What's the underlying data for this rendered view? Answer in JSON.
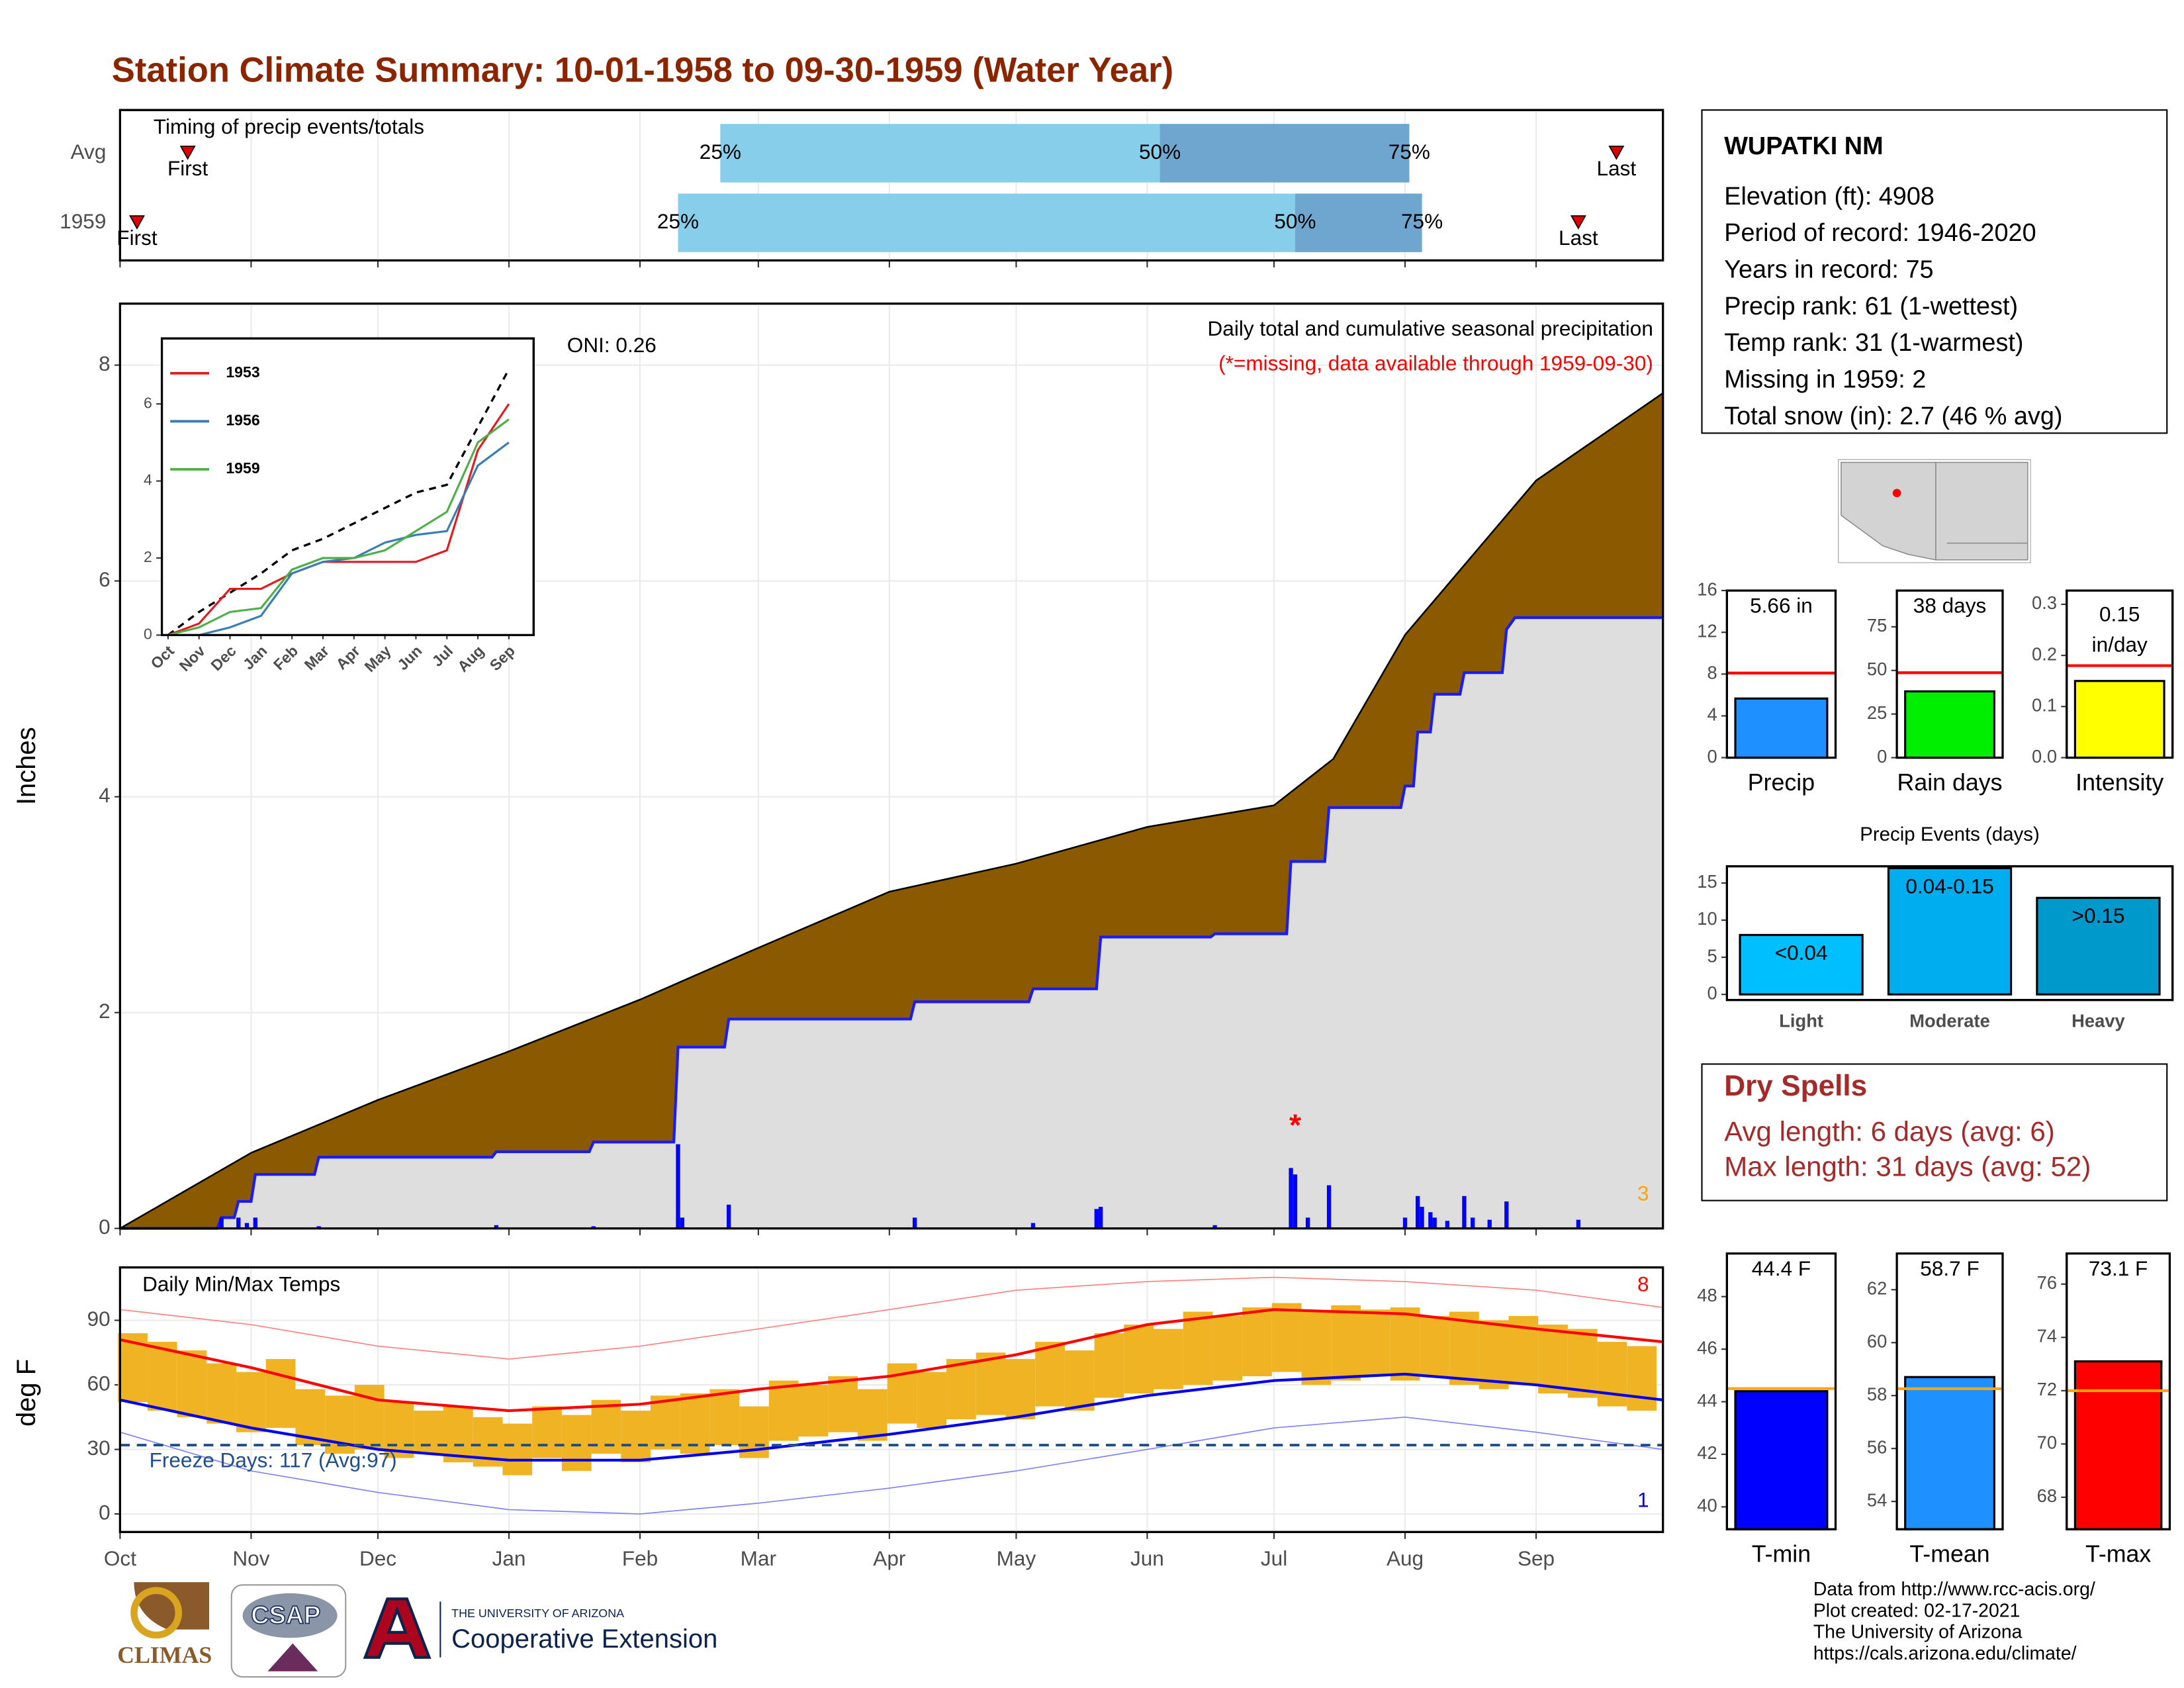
{
  "title": "Station Climate Summary: 10-01-1958 to 09-30-1959 (Water Year)",
  "station": {
    "name": "WUPATKI NM",
    "lines": [
      "Elevation (ft): 4908",
      "Period of record: 1946-2020",
      "Years in record: 75",
      "Precip rank: 61 (1-wettest)",
      "Temp rank: 31 (1-warmest)",
      "Missing in 1959: 2",
      "Total snow (in): 2.7 (46 % avg)"
    ]
  },
  "dry_spells": {
    "title": "Dry Spells",
    "lines": [
      "Avg length: 6 days (avg: 6)",
      "Max length: 31 days (avg: 52)"
    ]
  },
  "credits": [
    "Data from http://www.rcc-acis.org/",
    "Plot created: 02-17-2021",
    "The University of Arizona",
    "https://cals.arizona.edu/climate/"
  ],
  "logos": [
    "CLIMAS",
    "CSAP",
    "THE UNIVERSITY OF ARIZONA",
    "Cooperative Extension"
  ],
  "chart_data": [
    {
      "type": "timeline",
      "title": "Timing of precip events/totals",
      "xlim": [
        0,
        365
      ],
      "marker_labels": {
        "first": "First",
        "last": "Last",
        "q25": "25%",
        "q50": "50%",
        "q75": "75%"
      },
      "colors": {
        "q25": "#87ceeb",
        "q50": "#6fa6cf",
        "marker": "#e00000"
      },
      "rows": [
        {
          "label": "Avg",
          "first": 16,
          "q25": 142,
          "q50": 246,
          "q75": 305,
          "last": 354
        },
        {
          "label": "1959",
          "first": 4,
          "q25": 132,
          "q50": 278,
          "q75": 308,
          "last": 345
        }
      ]
    },
    {
      "type": "area",
      "title": "Daily total and cumulative seasonal precipitation",
      "subtitle": "(*=missing, data available through 1959-09-30)",
      "annotation": "ONI: 0.26",
      "corner_note": 3,
      "y_label": "Inches",
      "xlim": [
        0,
        365
      ],
      "ylim": [
        0,
        8.57
      ],
      "yticks": [
        0,
        2,
        4,
        6,
        8
      ],
      "grid": true,
      "series": [
        {
          "color": "#8b5a00",
          "x": [
            0,
            31,
            61,
            92,
            123,
            151,
            182,
            212,
            243,
            273,
            287,
            304,
            335,
            365
          ],
          "values": [
            0,
            0.7,
            1.19,
            1.64,
            2.12,
            2.6,
            3.12,
            3.38,
            3.72,
            3.92,
            4.35,
            5.5,
            6.93,
            7.74
          ]
        },
        {
          "color": "#1a1aff",
          "x": [
            0,
            23,
            24,
            27,
            28,
            31,
            32,
            46,
            47,
            88,
            89,
            111,
            112,
            131,
            132,
            143,
            144,
            187,
            188,
            215,
            216,
            231,
            232,
            258,
            259,
            276,
            277,
            285,
            286,
            303,
            304,
            306,
            307,
            310,
            311,
            317,
            318,
            327,
            328,
            330,
            365
          ],
          "values": [
            0,
            0,
            0.1,
            0.1,
            0.25,
            0.25,
            0.5,
            0.5,
            0.66,
            0.66,
            0.71,
            0.71,
            0.8,
            0.8,
            1.68,
            1.68,
            1.94,
            1.94,
            2.1,
            2.1,
            2.22,
            2.22,
            2.7,
            2.7,
            2.73,
            2.73,
            3.4,
            3.4,
            3.9,
            3.9,
            4.1,
            4.1,
            4.6,
            4.6,
            4.95,
            4.95,
            5.15,
            5.15,
            5.55,
            5.66,
            5.66
          ]
        }
      ],
      "daily": {
        "color": "#0000ff",
        "x": [
          24,
          28,
          30,
          32,
          47,
          89,
          112,
          132,
          133,
          144,
          188,
          216,
          231,
          232,
          259,
          277,
          278,
          281,
          286,
          304,
          307,
          308,
          310,
          311,
          314,
          318,
          320,
          324,
          328,
          345
        ],
        "values": [
          0.1,
          0.1,
          0.05,
          0.1,
          0.02,
          0.03,
          0.02,
          0.78,
          0.1,
          0.22,
          0.1,
          0.05,
          0.18,
          0.2,
          0.03,
          0.56,
          0.5,
          0.1,
          0.4,
          0.1,
          0.3,
          0.2,
          0.15,
          0.1,
          0.07,
          0.3,
          0.1,
          0.08,
          0.25,
          0.08
        ]
      },
      "missing": {
        "label": "*",
        "color": "#ff0000",
        "x": [
          278
        ],
        "values": [
          1.0
        ]
      }
    },
    {
      "type": "line",
      "categories": [
        "Oct",
        "Nov",
        "Dec",
        "Jan",
        "Feb",
        "Mar",
        "Apr",
        "May",
        "Jun",
        "Jul",
        "Aug",
        "Sep"
      ],
      "ylim": [
        0,
        7.7
      ],
      "yticks": [
        0,
        2,
        4,
        6
      ],
      "reference": {
        "color": "#000000",
        "values": [
          0,
          0.6,
          1.1,
          1.6,
          2.2,
          2.5,
          2.9,
          3.3,
          3.7,
          3.9,
          5.4,
          6.9
        ]
      },
      "series": [
        {
          "name": "1953",
          "color": "#e41a1c",
          "values": [
            0,
            0.3,
            1.2,
            1.2,
            1.6,
            1.9,
            1.9,
            1.9,
            1.9,
            2.2,
            4.8,
            6.0
          ]
        },
        {
          "name": "1956",
          "color": "#377eb8",
          "values": [
            0,
            0,
            0.2,
            0.5,
            1.6,
            1.9,
            2.0,
            2.4,
            2.6,
            2.7,
            4.4,
            5.0
          ]
        },
        {
          "name": "1959",
          "color": "#4daf4a",
          "values": [
            0,
            0.2,
            0.6,
            0.7,
            1.7,
            2.0,
            2.0,
            2.2,
            2.7,
            3.2,
            5.0,
            5.6
          ]
        }
      ]
    },
    {
      "type": "range",
      "title": "Daily Min/Max Temps",
      "y_label": "deg F",
      "annotation": "Freeze Days: 117 (Avg:97)",
      "freeze_line": 32,
      "count_high": 8,
      "count_low": 1,
      "xlim": [
        0,
        365
      ],
      "ylim": [
        -8.4,
        114.6
      ],
      "yticks": [
        0,
        30,
        60,
        90
      ],
      "grid": true,
      "xticks": [
        {
          "value": 0,
          "label": "Oct"
        },
        {
          "value": 31,
          "label": "Nov"
        },
        {
          "value": 61,
          "label": "Dec"
        },
        {
          "value": 92,
          "label": "Jan"
        },
        {
          "value": 123,
          "label": "Feb"
        },
        {
          "value": 151,
          "label": "Mar"
        },
        {
          "value": 182,
          "label": "Apr"
        },
        {
          "value": 212,
          "label": "May"
        },
        {
          "value": 243,
          "label": "Jun"
        },
        {
          "value": 273,
          "label": "Jul"
        },
        {
          "value": 304,
          "label": "Aug"
        },
        {
          "value": 335,
          "label": "Sep"
        }
      ],
      "daily": {
        "color": "#f0b323",
        "x": [
          3,
          10,
          17,
          24,
          31,
          38,
          45,
          52,
          59,
          66,
          73,
          80,
          87,
          94,
          101,
          108,
          115,
          122,
          129,
          136,
          143,
          150,
          157,
          164,
          171,
          178,
          185,
          192,
          199,
          206,
          213,
          220,
          227,
          234,
          241,
          248,
          255,
          262,
          269,
          276,
          283,
          290,
          297,
          304,
          311,
          318,
          325,
          332,
          339,
          346,
          353,
          360
        ],
        "max": [
          84,
          80,
          76,
          70,
          66,
          72,
          58,
          55,
          60,
          52,
          48,
          50,
          45,
          42,
          50,
          46,
          53,
          48,
          55,
          56,
          58,
          50,
          62,
          60,
          64,
          58,
          70,
          66,
          72,
          75,
          72,
          80,
          76,
          84,
          88,
          86,
          94,
          92,
          96,
          98,
          94,
          97,
          95,
          96,
          92,
          94,
          90,
          92,
          88,
          86,
          80,
          78
        ],
        "min": [
          52,
          48,
          45,
          42,
          38,
          40,
          32,
          28,
          30,
          26,
          28,
          24,
          22,
          18,
          26,
          20,
          28,
          24,
          30,
          28,
          32,
          26,
          34,
          36,
          38,
          34,
          42,
          40,
          44,
          46,
          44,
          50,
          48,
          54,
          56,
          58,
          60,
          62,
          64,
          66,
          60,
          62,
          64,
          62,
          64,
          60,
          58,
          60,
          56,
          54,
          50,
          48
        ]
      },
      "lines": [
        {
          "color": "#ff0000",
          "width": 2,
          "x": [
            0,
            31,
            61,
            92,
            123,
            151,
            182,
            212,
            243,
            273,
            304,
            335,
            365
          ],
          "values": [
            81,
            68,
            53,
            48,
            51,
            58,
            64,
            74,
            88,
            95,
            93,
            86,
            80
          ]
        },
        {
          "color": "#0000ee",
          "width": 2,
          "x": [
            0,
            31,
            61,
            92,
            123,
            151,
            182,
            212,
            243,
            273,
            304,
            335,
            365
          ],
          "values": [
            53,
            40,
            30,
            25,
            25,
            30,
            37,
            45,
            55,
            62,
            65,
            60,
            53
          ]
        },
        {
          "color": "#ff8080",
          "width": 0.8,
          "x": [
            0,
            31,
            61,
            92,
            123,
            151,
            182,
            212,
            243,
            273,
            304,
            335,
            365
          ],
          "values": [
            95,
            88,
            78,
            72,
            78,
            86,
            95,
            104,
            108,
            110,
            108,
            104,
            96
          ]
        },
        {
          "color": "#8080ff",
          "width": 0.8,
          "x": [
            0,
            31,
            61,
            92,
            123,
            151,
            182,
            212,
            243,
            273,
            304,
            335,
            365
          ],
          "values": [
            38,
            20,
            10,
            2,
            0,
            5,
            12,
            20,
            30,
            40,
            45,
            38,
            30
          ]
        }
      ]
    },
    {
      "type": "gauge",
      "label": "Precip",
      "value": 5.66,
      "value_label": "5.66 in",
      "average": 8.1,
      "color": "#1e90ff",
      "average_color": "#ff0000",
      "ylim": [
        0,
        16
      ],
      "yticks": [
        0,
        4,
        8,
        12,
        16
      ]
    },
    {
      "type": "gauge",
      "label": "Rain days",
      "value": 38,
      "value_label": "38 days",
      "average": 48.7,
      "color": "#00ee00",
      "average_color": "#ff0000",
      "ylim": [
        0,
        95.8
      ],
      "yticks": [
        0,
        25,
        50,
        75
      ]
    },
    {
      "type": "gauge",
      "label": "Intensity",
      "value": 0.15,
      "value_label": "0.15",
      "unit": "in/day",
      "average": 0.18,
      "color": "#ffff00",
      "average_color": "#ff0000",
      "ylim": [
        0,
        0.327
      ],
      "yticks": [
        {
          "value": 0,
          "label": "0.0"
        },
        0.1,
        0.2,
        0.3
      ]
    },
    {
      "type": "bar",
      "title": "Precip Events (days)",
      "categories": [
        "Light",
        "Moderate",
        "Heavy"
      ],
      "ranges": [
        "<0.04",
        "0.04-0.15",
        ">0.15"
      ],
      "values": [
        8,
        17,
        13
      ],
      "colors": [
        "#00bfff",
        "#00aeef",
        "#0099cc"
      ],
      "ylim": [
        -0.75,
        17.25
      ],
      "yticks": [
        0,
        5,
        10,
        15
      ]
    },
    {
      "type": "gauge",
      "label": "T-min",
      "value": 44.4,
      "value_label": "44.4 F",
      "average": 44.5,
      "color": "#0000ff",
      "average_color": "#ffa500",
      "ylim": [
        39.15,
        49.64
      ],
      "yticks": [
        40,
        42,
        44,
        46,
        48
      ]
    },
    {
      "type": "gauge",
      "label": "T-mean",
      "value": 58.7,
      "value_label": "58.7 F",
      "average": 58.26,
      "color": "#1e90ff",
      "average_color": "#ffa500",
      "ylim": [
        52.95,
        63.37
      ],
      "yticks": [
        54,
        56,
        58,
        60,
        62
      ]
    },
    {
      "type": "gauge",
      "label": "T-max",
      "value": 73.1,
      "value_label": "73.1 F",
      "average": 72.0,
      "color": "#ff0000",
      "average_color": "#ffa500",
      "ylim": [
        66.8,
        77.15
      ],
      "yticks": [
        68,
        70,
        72,
        74,
        76
      ]
    }
  ]
}
